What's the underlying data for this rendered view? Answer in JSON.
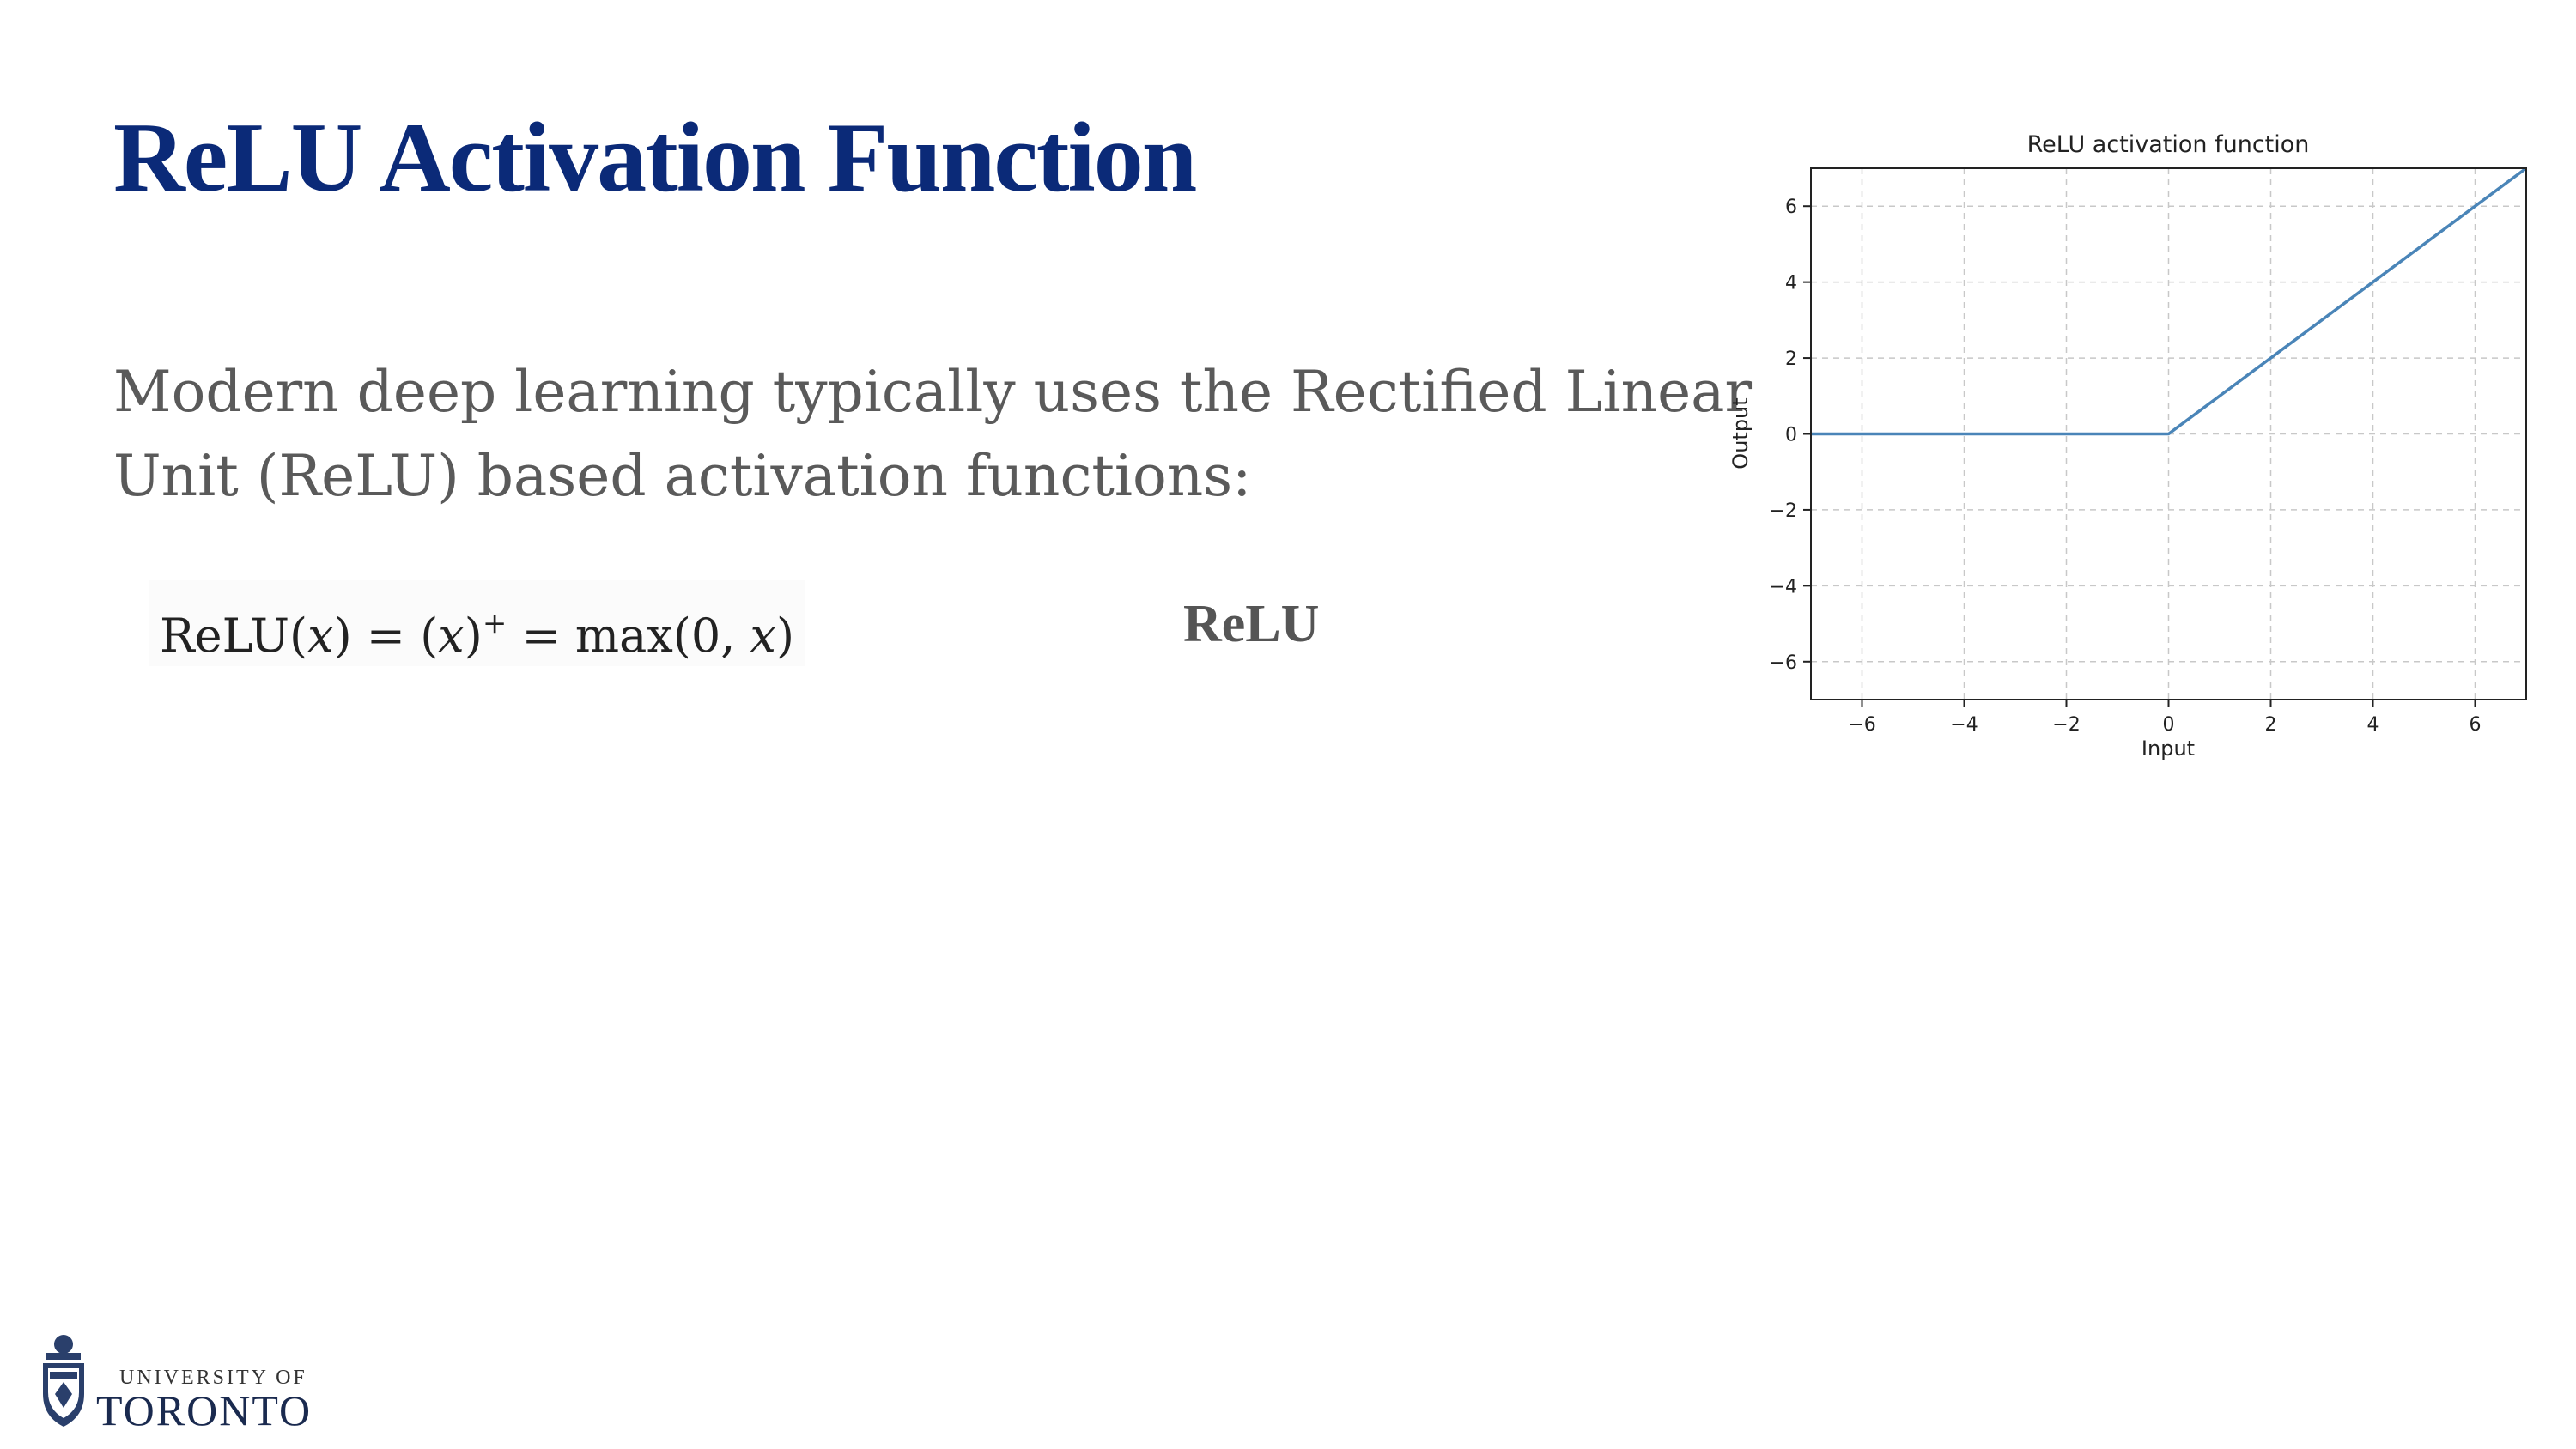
{
  "slide": {
    "title": "ReLU Activation Function",
    "body_lines": [
      "Modern deep learning typically uses the Rectified Linear",
      "Unit (ReLU) based activation functions:"
    ],
    "formula": {
      "lhs": "ReLU(",
      "var": "x",
      "mid1": ") = (",
      "mid2": ")",
      "sup": "+",
      "mid3": " = max(0, ",
      "end": ")"
    },
    "side_label": "ReLU"
  },
  "logo": {
    "line1": "UNIVERSITY OF",
    "line2": "TORONTO"
  },
  "chart_data": {
    "type": "line",
    "title": "ReLU activation function",
    "xlabel": "Input",
    "ylabel": "Output",
    "xlim": [
      -7,
      7
    ],
    "ylim": [
      -7,
      7
    ],
    "xticks": [
      -6,
      -4,
      -2,
      0,
      2,
      4,
      6
    ],
    "yticks": [
      -6,
      -4,
      -2,
      0,
      2,
      4,
      6
    ],
    "grid": true,
    "series": [
      {
        "x": [
          -7,
          0,
          7
        ],
        "y": [
          0,
          0,
          7
        ]
      }
    ],
    "line_color": "#4a85b8"
  }
}
